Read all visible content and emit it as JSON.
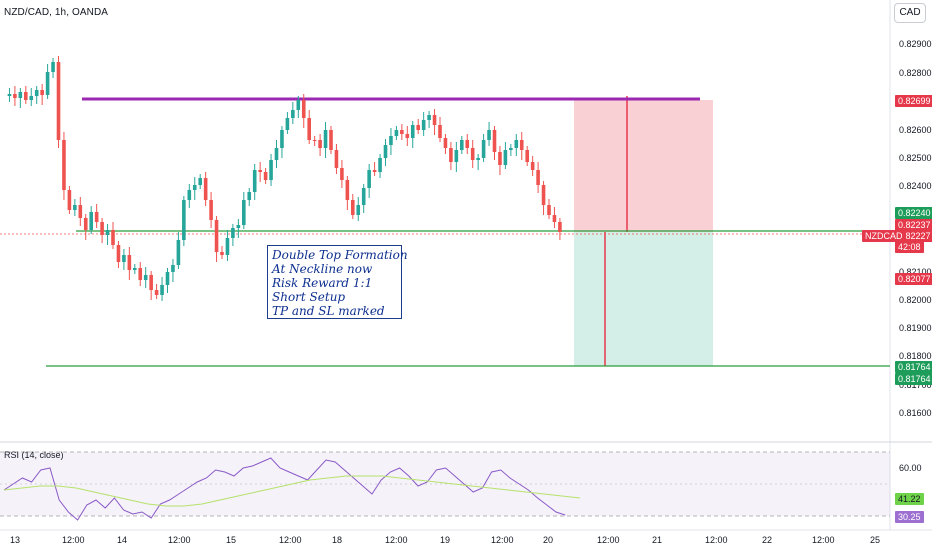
{
  "header": {
    "title": "NZD/CAD, 1h, OANDA",
    "currency_button": "CAD"
  },
  "price_axis": {
    "ticks": [
      "0.82900",
      "0.82800",
      "0.82600",
      "0.82500",
      "0.82400",
      "0.82100",
      "0.82000",
      "0.81900",
      "0.81800",
      "0.81700",
      "0.81600"
    ],
    "labels": [
      {
        "text": "0.82699",
        "color": "#e5394b"
      },
      {
        "text": "0.82240",
        "color": "#1e9d5a"
      },
      {
        "text": "0.82237",
        "color": "#e5394b"
      },
      {
        "text": "0.82227",
        "color": "#e5394b"
      },
      {
        "text": "42:08",
        "color": "#e5394b"
      },
      {
        "text": "0.82077",
        "color": "#e5394b"
      },
      {
        "text": "0.81764",
        "color": "#1e9d5a"
      },
      {
        "text": "0.81764",
        "color": "#1e9d5a"
      }
    ],
    "symbol_tag": "NZDCAD"
  },
  "time_axis": [
    "13",
    "12:00",
    "14",
    "12:00",
    "15",
    "12:00",
    "18",
    "12:00",
    "19",
    "12:00",
    "20",
    "12:00",
    "21",
    "12:00",
    "22",
    "12:00",
    "25"
  ],
  "annotation": {
    "lines": [
      "Double Top Formation",
      "At Neckline now",
      "Risk Reward 1:1",
      "Short Setup",
      "TP and SL marked"
    ]
  },
  "rsi": {
    "title": "RSI (14, close)",
    "axis_tick": "60.00",
    "labels": [
      {
        "text": "41.22",
        "color": "#6fd34a",
        "text_color": "#131722"
      },
      {
        "text": "30.25",
        "color": "#9c6fd0",
        "text_color": "#131722"
      }
    ]
  },
  "colors": {
    "up": "#26a69a",
    "down": "#ef5350",
    "resistance": "#9c27b0",
    "neckline": "#2a9d3a",
    "stop_zone": "#f8c9cd",
    "target_zone": "#cfece6",
    "rsi_line": "#8a5ac7",
    "rsi_ma": "#b5e26b"
  }
}
